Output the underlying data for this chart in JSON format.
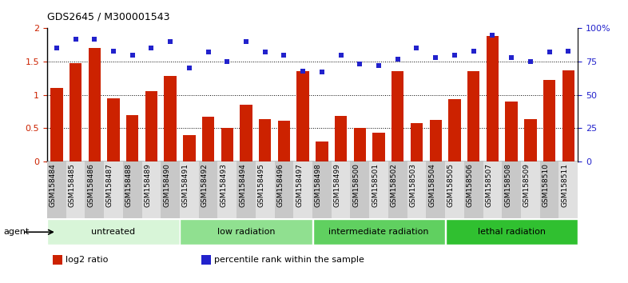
{
  "title": "GDS2645 / M300001543",
  "categories": [
    "GSM158484",
    "GSM158485",
    "GSM158486",
    "GSM158487",
    "GSM158488",
    "GSM158489",
    "GSM158490",
    "GSM158491",
    "GSM158492",
    "GSM158493",
    "GSM158494",
    "GSM158495",
    "GSM158496",
    "GSM158497",
    "GSM158498",
    "GSM158499",
    "GSM158500",
    "GSM158501",
    "GSM158502",
    "GSM158503",
    "GSM158504",
    "GSM158505",
    "GSM158506",
    "GSM158507",
    "GSM158508",
    "GSM158509",
    "GSM158510",
    "GSM158511"
  ],
  "bar_values": [
    1.1,
    1.47,
    1.7,
    0.95,
    0.7,
    1.05,
    1.28,
    0.4,
    0.67,
    0.5,
    0.85,
    0.63,
    0.61,
    1.35,
    0.3,
    0.68,
    0.5,
    0.43,
    1.35,
    0.58,
    0.62,
    0.93,
    1.35,
    1.88,
    0.9,
    0.63,
    1.22,
    1.37
  ],
  "dot_values": [
    85,
    92,
    92,
    83,
    80,
    85,
    90,
    70,
    82,
    75,
    90,
    82,
    80,
    68,
    67,
    80,
    73,
    72,
    77,
    85,
    78,
    80,
    83,
    95,
    78,
    75,
    82,
    83
  ],
  "groups": [
    {
      "label": "untreated",
      "start": 0,
      "end": 7,
      "color": "#d8f5d8"
    },
    {
      "label": "low radiation",
      "start": 7,
      "end": 14,
      "color": "#90e090"
    },
    {
      "label": "intermediate radiation",
      "start": 14,
      "end": 21,
      "color": "#60d060"
    },
    {
      "label": "lethal radiation",
      "start": 21,
      "end": 28,
      "color": "#30c030"
    }
  ],
  "bar_color": "#cc2200",
  "dot_color": "#2222cc",
  "ylim_left": [
    0,
    2
  ],
  "ylim_right": [
    0,
    100
  ],
  "yticks_left": [
    0,
    0.5,
    1.0,
    1.5,
    2.0
  ],
  "yticks_right": [
    0,
    25,
    50,
    75,
    100
  ],
  "ytick_labels_left": [
    "0",
    "0.5",
    "1",
    "1.5",
    "2"
  ],
  "ytick_labels_right": [
    "0",
    "25",
    "50",
    "75",
    "100%"
  ],
  "bg_color": "#ffffff",
  "plot_bg": "#ffffff",
  "xtick_bg_even": "#c8c8c8",
  "xtick_bg_odd": "#e0e0e0",
  "title_fontsize": 9,
  "agent_label": "agent",
  "legend_items": [
    {
      "color": "#cc2200",
      "label": "log2 ratio"
    },
    {
      "color": "#2222cc",
      "label": "percentile rank within the sample"
    }
  ],
  "gridline_y": [
    0.5,
    1.0,
    1.5
  ],
  "gridline_color": "#000000",
  "gridline_style": "dotted",
  "gridline_lw": 0.7
}
